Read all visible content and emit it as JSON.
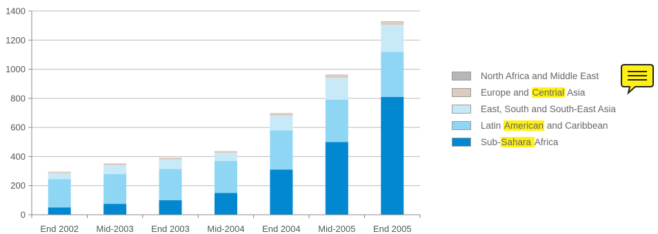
{
  "chart_data": {
    "type": "bar",
    "stacked": true,
    "title": "",
    "xlabel": "",
    "ylabel": "",
    "categories": [
      "End 2002",
      "Mid-2003",
      "End 2003",
      "Mid-2004",
      "End 2004",
      "Mid-2005",
      "End 2005"
    ],
    "yticks": [
      0,
      200,
      400,
      600,
      800,
      1000,
      1200,
      1400
    ],
    "ylim": [
      0,
      1400
    ],
    "grid": true,
    "legend_position": "right",
    "series": [
      {
        "name": "Sub-Sahara Africa",
        "color": "#0288d1",
        "values": [
          50,
          75,
          100,
          150,
          310,
          500,
          810
        ]
      },
      {
        "name": "Latin American and Caribbean",
        "color": "#8fd6f5",
        "values": [
          195,
          205,
          215,
          220,
          270,
          290,
          310
        ]
      },
      {
        "name": "East, South and South-East Asia",
        "color": "#c8eaf8",
        "values": [
          40,
          60,
          65,
          55,
          100,
          150,
          185
        ]
      },
      {
        "name": "Europe and Centrial Asia",
        "color": "#ddcbc0",
        "values": [
          8,
          10,
          10,
          10,
          15,
          20,
          20
        ]
      },
      {
        "name": "North Africa and Middle East",
        "color": "#b7b7b9",
        "values": [
          2,
          2,
          2,
          2,
          3,
          3,
          4
        ]
      }
    ]
  },
  "legend": {
    "items": [
      {
        "color": "#b7b7b9",
        "pre": "North Africa and Middle East",
        "hl": "",
        "post": ""
      },
      {
        "color": "#ddcbc0",
        "pre": "Europe and ",
        "hl": "Centrial",
        "post": " Asia"
      },
      {
        "color": "#c8eaf8",
        "pre": "East, South and South-East Asia",
        "hl": "",
        "post": ""
      },
      {
        "color": "#8fd6f5",
        "pre": "Latin ",
        "hl": "American",
        "post": " and Caribbean"
      },
      {
        "color": "#0288d1",
        "pre": "Sub-",
        "hl": "Sahara ",
        "post": "Africa"
      }
    ]
  },
  "annotation": {
    "icon": "comment-note-icon",
    "color": "#ffef14"
  }
}
